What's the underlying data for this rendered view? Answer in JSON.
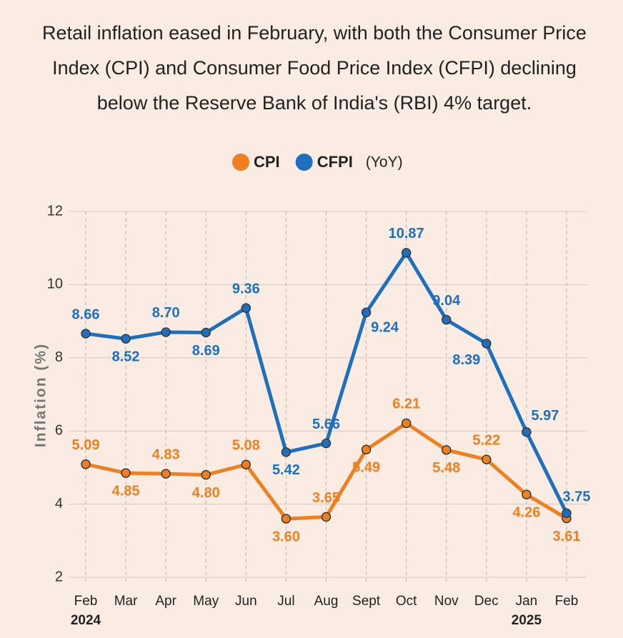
{
  "chart_data": {
    "type": "line",
    "title": "Retail inflation eased in February, with both the Consumer Price Index (CPI) and Consumer Food Price Index (CFPI) declining below the Reserve Bank of India's (RBI) 4% target.",
    "note": "(YoY)",
    "y_label": "Inflation (%)",
    "categories": [
      "Feb",
      "Mar",
      "Apr",
      "May",
      "Jun",
      "Jul",
      "Aug",
      "Sept",
      "Oct",
      "Nov",
      "Dec",
      "Jan",
      "Feb"
    ],
    "x_sublabels": [
      "2024",
      null,
      null,
      null,
      null,
      null,
      null,
      null,
      null,
      null,
      null,
      "2025",
      null
    ],
    "series": [
      {
        "name": "CPI",
        "color": "#f07f1f",
        "values": [
          5.09,
          4.85,
          4.83,
          4.8,
          5.08,
          3.6,
          3.65,
          5.49,
          6.21,
          5.48,
          5.22,
          4.26,
          3.61
        ],
        "value_labels": [
          "5.09",
          "4.85",
          "4.83",
          "4.80",
          "5.08",
          "3.60",
          "3.65",
          "5.49",
          "6.21",
          "5.48",
          "5.22",
          "4.26",
          "3.61"
        ]
      },
      {
        "name": "CFPI",
        "color": "#1f6fbf",
        "values": [
          8.66,
          8.52,
          8.7,
          8.69,
          9.36,
          5.42,
          5.66,
          9.24,
          10.87,
          9.04,
          8.39,
          5.97,
          3.75
        ],
        "value_labels": [
          "8.66",
          "8.52",
          "8.70",
          "8.69",
          "9.36",
          "5.42",
          "5.66",
          "9.24",
          "10.87",
          "9.04",
          "8.39",
          "5.97",
          "3.75"
        ]
      }
    ],
    "ylim": [
      2,
      12
    ],
    "yticks": [
      2,
      4,
      6,
      8,
      10,
      12
    ],
    "grid": true
  }
}
